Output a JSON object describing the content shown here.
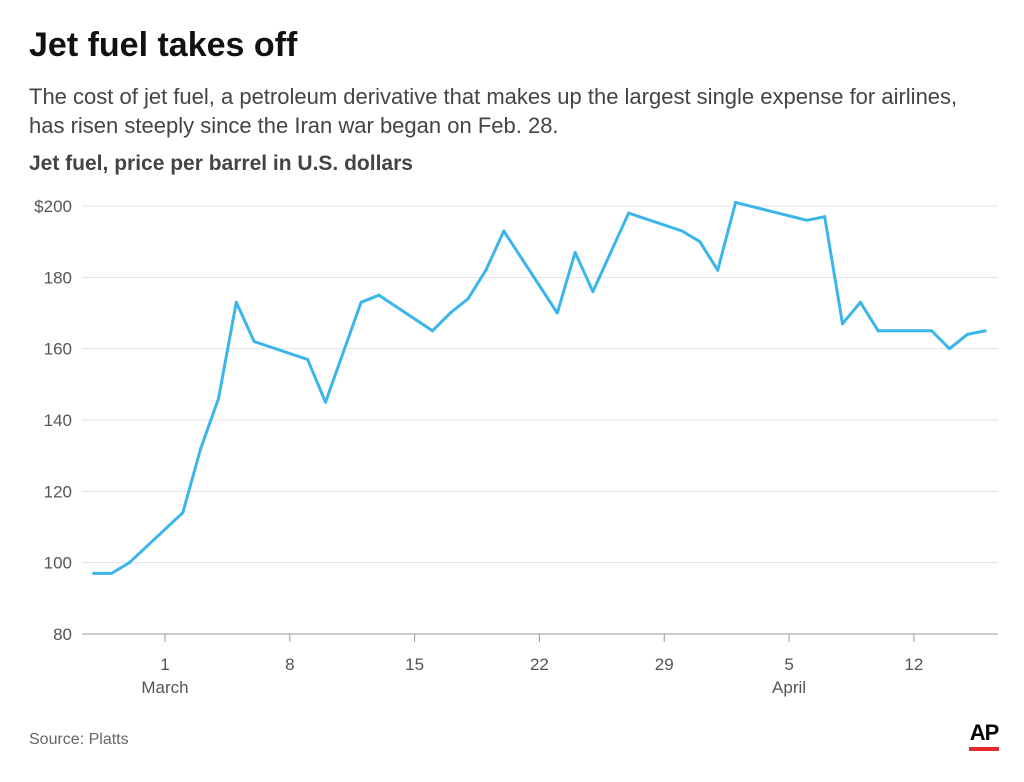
{
  "chart_data": {
    "type": "line",
    "title": "Jet fuel takes off",
    "subtitle": "The cost of jet fuel, a petroleum derivative that makes up the largest single expense for airlines, has risen steeply since the Iran war began on Feb. 28.",
    "ylabel": "Jet fuel, price per barrel in U.S. dollars",
    "xlabel": "",
    "ylim": [
      80,
      200
    ],
    "yticks": [
      "$200",
      "180",
      "160",
      "140",
      "120",
      "100",
      "80"
    ],
    "ytick_values": [
      200,
      180,
      160,
      140,
      120,
      100,
      80
    ],
    "xticks": [
      {
        "date": "Mar 1",
        "label": "1",
        "month": "March"
      },
      {
        "date": "Mar 8",
        "label": "8",
        "month": ""
      },
      {
        "date": "Mar 15",
        "label": "15",
        "month": ""
      },
      {
        "date": "Mar 22",
        "label": "22",
        "month": ""
      },
      {
        "date": "Mar 29",
        "label": "29",
        "month": ""
      },
      {
        "date": "Apr 5",
        "label": "5",
        "month": "April"
      },
      {
        "date": "Apr 12",
        "label": "12",
        "month": ""
      }
    ],
    "grid": true,
    "line_color": "#3bb5ea",
    "x": [
      "Feb 25",
      "Feb 26",
      "Feb 27",
      "Mar 2",
      "Mar 3",
      "Mar 4",
      "Mar 5",
      "Mar 6",
      "Mar 9",
      "Mar 10",
      "Mar 12",
      "Mar 13",
      "Mar 16",
      "Mar 17",
      "Mar 18",
      "Mar 19",
      "Mar 20",
      "Mar 23",
      "Mar 24",
      "Mar 25",
      "Mar 27",
      "Mar 30",
      "Mar 31",
      "Apr 1",
      "Apr 2",
      "Apr 6",
      "Apr 7",
      "Apr 8",
      "Apr 9",
      "Apr 10",
      "Apr 13",
      "Apr 14",
      "Apr 15",
      "Apr 16"
    ],
    "values": [
      97,
      97,
      100,
      114,
      132,
      146,
      173,
      162,
      157,
      145,
      173,
      175,
      165,
      170,
      174,
      182,
      193,
      170,
      187,
      176,
      198,
      193,
      190,
      182,
      201,
      196,
      197,
      167,
      173,
      165,
      165,
      160,
      164,
      165
    ]
  },
  "footer": {
    "source": "Source: Platts",
    "logo": "AP"
  }
}
